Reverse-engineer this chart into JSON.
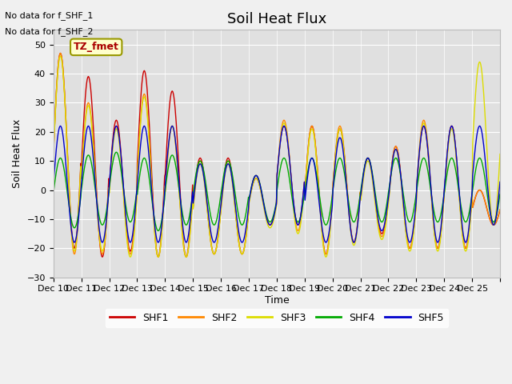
{
  "title": "Soil Heat Flux",
  "ylabel": "Soil Heat Flux",
  "xlabel": "Time",
  "no_data_text": [
    "No data for f_SHF_1",
    "No data for f_SHF_2"
  ],
  "tz_label": "TZ_fmet",
  "ylim": [
    -30,
    55
  ],
  "yticks": [
    -30,
    -20,
    -10,
    0,
    10,
    20,
    30,
    40,
    50
  ],
  "xtick_labels": [
    "Dec 10",
    "Dec 11",
    "Dec 12",
    "Dec 13",
    "Dec 14",
    "Dec 15",
    "Dec 16",
    "Dec 17",
    "Dec 18",
    "Dec 19",
    "Dec 20",
    "Dec 21",
    "Dec 22",
    "Dec 23",
    "Dec 24",
    "Dec 25"
  ],
  "series_colors": {
    "SHF1": "#cc0000",
    "SHF2": "#ff8800",
    "SHF3": "#dddd00",
    "SHF4": "#00aa00",
    "SHF5": "#0000cc"
  },
  "background_color": "#e8e8e8",
  "title_fontsize": 13,
  "n_days": 16
}
